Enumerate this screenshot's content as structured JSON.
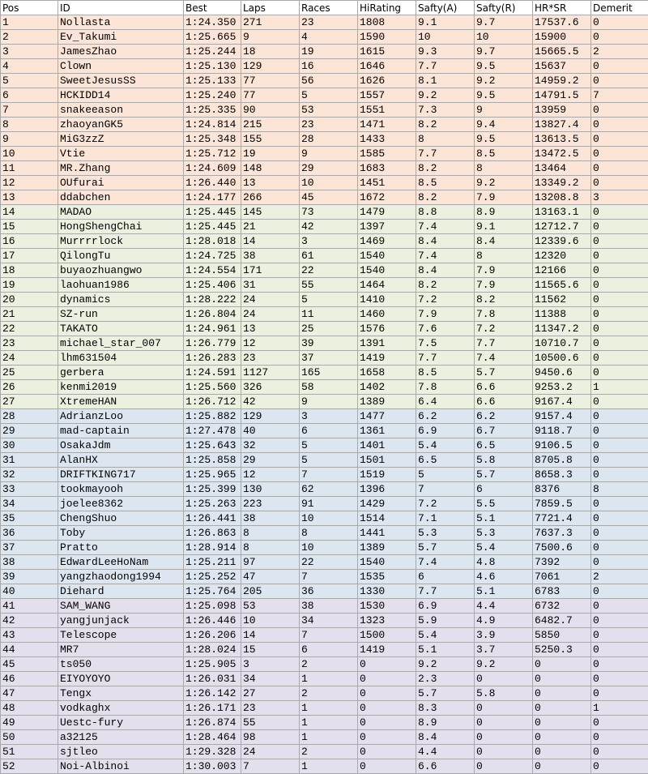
{
  "table": {
    "header": [
      "Pos",
      "ID",
      "Best",
      "Laps",
      "Races",
      "HiRating",
      "Safty(A)",
      "Safty(R)",
      "HR*SR",
      "Demerit"
    ],
    "rows": [
      [
        "1",
        "Nollasta",
        "1:24.350",
        "271",
        "23",
        "1808",
        "9.1",
        "9.7",
        "17537.6",
        "0"
      ],
      [
        "2",
        "Ev_Takumi",
        "1:25.665",
        "9",
        "4",
        "1590",
        "10",
        "10",
        "15900",
        "0"
      ],
      [
        "3",
        "JamesZhao",
        "1:25.244",
        "18",
        "19",
        "1615",
        "9.3",
        "9.7",
        "15665.5",
        "2"
      ],
      [
        "4",
        "Clown",
        "1:25.130",
        "129",
        "16",
        "1646",
        "7.7",
        "9.5",
        "15637",
        "0"
      ],
      [
        "5",
        "SweetJesusSS",
        "1:25.133",
        "77",
        "56",
        "1626",
        "8.1",
        "9.2",
        "14959.2",
        "0"
      ],
      [
        "6",
        "HCKIDD14",
        "1:25.240",
        "77",
        "5",
        "1557",
        "9.2",
        "9.5",
        "14791.5",
        "7"
      ],
      [
        "7",
        "snakeeason",
        "1:25.335",
        "90",
        "53",
        "1551",
        "7.3",
        "9",
        "13959",
        "0"
      ],
      [
        "8",
        "zhaoyanGK5",
        "1:24.814",
        "215",
        "23",
        "1471",
        "8.2",
        "9.4",
        "13827.4",
        "0"
      ],
      [
        "9",
        "MiG3zzZ",
        "1:25.348",
        "155",
        "28",
        "1433",
        "8",
        "9.5",
        "13613.5",
        "0"
      ],
      [
        "10",
        "Vtie",
        "1:25.712",
        "19",
        "9",
        "1585",
        "7.7",
        "8.5",
        "13472.5",
        "0"
      ],
      [
        "11",
        "MR.Zhang",
        "1:24.609",
        "148",
        "29",
        "1683",
        "8.2",
        "8",
        "13464",
        "0"
      ],
      [
        "12",
        "OUfurai",
        "1:26.440",
        "13",
        "10",
        "1451",
        "8.5",
        "9.2",
        "13349.2",
        "0"
      ],
      [
        "13",
        "ddabchen",
        "1:24.177",
        "266",
        "45",
        "1672",
        "8.2",
        "7.9",
        "13208.8",
        "3"
      ],
      [
        "14",
        "MADAO",
        "1:25.445",
        "145",
        "73",
        "1479",
        "8.8",
        "8.9",
        "13163.1",
        "0"
      ],
      [
        "15",
        "HongShengChai",
        "1:25.445",
        "21",
        "42",
        "1397",
        "7.4",
        "9.1",
        "12712.7",
        "0"
      ],
      [
        "16",
        "Murrrrlock",
        "1:28.018",
        "14",
        "3",
        "1469",
        "8.4",
        "8.4",
        "12339.6",
        "0"
      ],
      [
        "17",
        "QilongTu",
        "1:24.725",
        "38",
        "61",
        "1540",
        "7.4",
        "8",
        "12320",
        "0"
      ],
      [
        "18",
        "buyaozhuangwo",
        "1:24.554",
        "171",
        "22",
        "1540",
        "8.4",
        "7.9",
        "12166",
        "0"
      ],
      [
        "19",
        "laohuan1986",
        "1:25.406",
        "31",
        "55",
        "1464",
        "8.2",
        "7.9",
        "11565.6",
        "0"
      ],
      [
        "20",
        "dynamics",
        "1:28.222",
        "24",
        "5",
        "1410",
        "7.2",
        "8.2",
        "11562",
        "0"
      ],
      [
        "21",
        "SZ-run",
        "1:26.804",
        "24",
        "11",
        "1460",
        "7.9",
        "7.8",
        "11388",
        "0"
      ],
      [
        "22",
        "TAKATO",
        "1:24.961",
        "13",
        "25",
        "1576",
        "7.6",
        "7.2",
        "11347.2",
        "0"
      ],
      [
        "23",
        "michael_star_007",
        "1:26.779",
        "12",
        "39",
        "1391",
        "7.5",
        "7.7",
        "10710.7",
        "0"
      ],
      [
        "24",
        "lhm631504",
        "1:26.283",
        "23",
        "37",
        "1419",
        "7.7",
        "7.4",
        "10500.6",
        "0"
      ],
      [
        "25",
        "gerbera",
        "1:24.591",
        "1127",
        "165",
        "1658",
        "8.5",
        "5.7",
        "9450.6",
        "0"
      ],
      [
        "26",
        "kenmi2019",
        "1:25.560",
        "326",
        "58",
        "1402",
        "7.8",
        "6.6",
        "9253.2",
        "1"
      ],
      [
        "27",
        "XtremeHAN",
        "1:26.712",
        "42",
        "9",
        "1389",
        "6.4",
        "6.6",
        "9167.4",
        "0"
      ],
      [
        "28",
        "AdrianzLoo",
        "1:25.882",
        "129",
        "3",
        "1477",
        "6.2",
        "6.2",
        "9157.4",
        "0"
      ],
      [
        "29",
        "mad-captain",
        "1:27.478",
        "40",
        "6",
        "1361",
        "6.9",
        "6.7",
        "9118.7",
        "0"
      ],
      [
        "30",
        "OsakaJdm",
        "1:25.643",
        "32",
        "5",
        "1401",
        "5.4",
        "6.5",
        "9106.5",
        "0"
      ],
      [
        "31",
        "AlanHX",
        "1:25.858",
        "29",
        "5",
        "1501",
        "6.5",
        "5.8",
        "8705.8",
        "0"
      ],
      [
        "32",
        "DRIFTKING717",
        "1:25.965",
        "12",
        "7",
        "1519",
        "5",
        "5.7",
        "8658.3",
        "0"
      ],
      [
        "33",
        "tookmayooh",
        "1:25.399",
        "130",
        "62",
        "1396",
        "7",
        "6",
        "8376",
        "8"
      ],
      [
        "34",
        "joelee8362",
        "1:25.263",
        "223",
        "91",
        "1429",
        "7.2",
        "5.5",
        "7859.5",
        "0"
      ],
      [
        "35",
        "ChengShuo",
        "1:26.441",
        "38",
        "10",
        "1514",
        "7.1",
        "5.1",
        "7721.4",
        "0"
      ],
      [
        "36",
        "Toby",
        "1:26.863",
        "8",
        "8",
        "1441",
        "5.3",
        "5.3",
        "7637.3",
        "0"
      ],
      [
        "37",
        "Pratto",
        "1:28.914",
        "8",
        "10",
        "1389",
        "5.7",
        "5.4",
        "7500.6",
        "0"
      ],
      [
        "38",
        "EdwardLeeHoNam",
        "1:25.211",
        "97",
        "22",
        "1540",
        "7.4",
        "4.8",
        "7392",
        "0"
      ],
      [
        "39",
        "yangzhaodong1994",
        "1:25.252",
        "47",
        "7",
        "1535",
        "6",
        "4.6",
        "7061",
        "2"
      ],
      [
        "40",
        "Diehard",
        "1:25.764",
        "205",
        "36",
        "1330",
        "7.7",
        "5.1",
        "6783",
        "0"
      ],
      [
        "41",
        "SAM_WANG",
        "1:25.098",
        "53",
        "38",
        "1530",
        "6.9",
        "4.4",
        "6732",
        "0"
      ],
      [
        "42",
        "yangjunjack",
        "1:26.446",
        "10",
        "34",
        "1323",
        "5.9",
        "4.9",
        "6482.7",
        "0"
      ],
      [
        "43",
        "Telescope",
        "1:26.206",
        "14",
        "7",
        "1500",
        "5.4",
        "3.9",
        "5850",
        "0"
      ],
      [
        "44",
        "MR7",
        "1:28.024",
        "15",
        "6",
        "1419",
        "5.1",
        "3.7",
        "5250.3",
        "0"
      ],
      [
        "45",
        "ts050",
        "1:25.905",
        "3",
        "2",
        "0",
        "9.2",
        "9.2",
        "0",
        "0"
      ],
      [
        "46",
        "EIYOYOYO",
        "1:26.031",
        "34",
        "1",
        "0",
        "2.3",
        "0",
        "0",
        "0"
      ],
      [
        "47",
        "Tengx",
        "1:26.142",
        "27",
        "2",
        "0",
        "5.7",
        "5.8",
        "0",
        "0"
      ],
      [
        "48",
        "vodkaghx",
        "1:26.171",
        "23",
        "1",
        "0",
        "8.3",
        "0",
        "0",
        "1"
      ],
      [
        "49",
        "Uestc-fury",
        "1:26.874",
        "55",
        "1",
        "0",
        "8.9",
        "0",
        "0",
        "0"
      ],
      [
        "50",
        "a32125",
        "1:28.464",
        "98",
        "1",
        "0",
        "8.4",
        "0",
        "0",
        "0"
      ],
      [
        "51",
        "sjtleo",
        "1:29.328",
        "24",
        "2",
        "0",
        "4.4",
        "0",
        "0",
        "0"
      ],
      [
        "52",
        "Noi-Albinoi",
        "1:30.003",
        "7",
        "1",
        "0",
        "6.6",
        "0",
        "0",
        "0"
      ]
    ]
  }
}
